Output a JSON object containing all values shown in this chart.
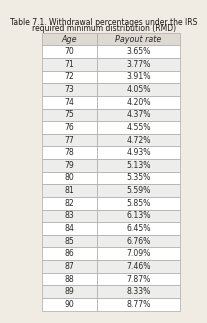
{
  "title_line1": "Table 7.1. Withdrawal percentages under the IRS",
  "title_line2": "required minimum distribution (RMD)",
  "col_headers": [
    "Age",
    "Payout rate"
  ],
  "rows": [
    [
      "70",
      "3.65%"
    ],
    [
      "71",
      "3.77%"
    ],
    [
      "72",
      "3.91%"
    ],
    [
      "73",
      "4.05%"
    ],
    [
      "74",
      "4.20%"
    ],
    [
      "75",
      "4.37%"
    ],
    [
      "76",
      "4.55%"
    ],
    [
      "77",
      "4.72%"
    ],
    [
      "78",
      "4.93%"
    ],
    [
      "79",
      "5.13%"
    ],
    [
      "80",
      "5.35%"
    ],
    [
      "81",
      "5.59%"
    ],
    [
      "82",
      "5.85%"
    ],
    [
      "83",
      "6.13%"
    ],
    [
      "84",
      "6.45%"
    ],
    [
      "85",
      "6.76%"
    ],
    [
      "86",
      "7.09%"
    ],
    [
      "87",
      "7.46%"
    ],
    [
      "88",
      "7.87%"
    ],
    [
      "89",
      "8.33%"
    ],
    [
      "90",
      "8.77%"
    ]
  ],
  "bg_color": "#f0ece3",
  "header_bg": "#dedad2",
  "row_bg_white": "#ffffff",
  "row_bg_gray": "#ededeb",
  "border_color": "#aaaaaa",
  "text_color": "#2a2a2a",
  "title_color": "#1a1a1a",
  "title_fontsize": 5.5,
  "header_fontsize": 5.8,
  "cell_fontsize": 5.6
}
